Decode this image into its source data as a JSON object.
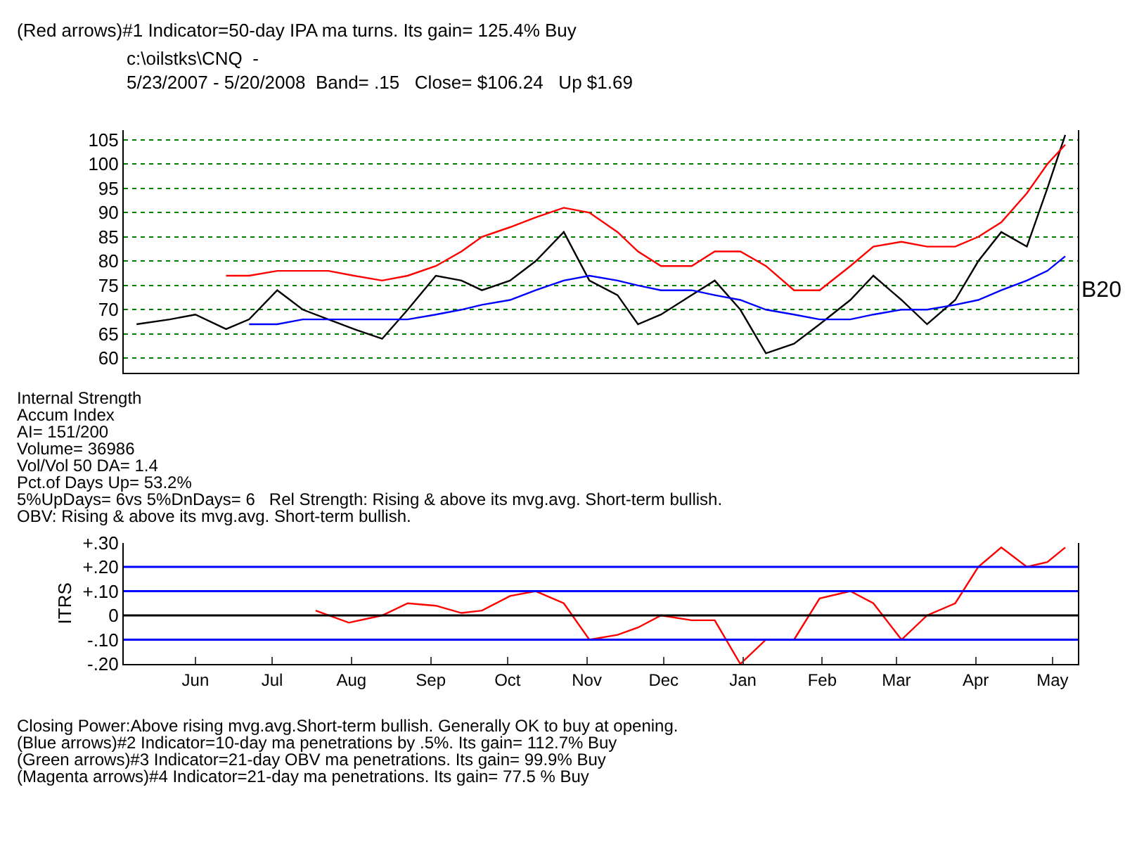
{
  "chart_data": [
    {
      "type": "line",
      "title": "(Red arrows)#1 Indicator=50-day IPA ma turns. Its gain= 125.4% Buy",
      "subtitle": "c:\\oilstks\\CNQ  -\n5/23/2007 - 5/20/2008  Band= .15   Close= $106.24   Up $1.69",
      "x": [
        "2007-05-23",
        "2007-06-05",
        "2007-06-15",
        "2007-06-27",
        "2007-07-06",
        "2007-07-17",
        "2007-07-27",
        "2007-08-06",
        "2007-08-16",
        "2007-08-27",
        "2007-09-06",
        "2007-09-17",
        "2007-09-27",
        "2007-10-05",
        "2007-10-16",
        "2007-10-26",
        "2007-11-06",
        "2007-11-16",
        "2007-11-27",
        "2007-12-05",
        "2007-12-14",
        "2007-12-26",
        "2008-01-04",
        "2008-01-14",
        "2008-01-24",
        "2008-02-04",
        "2008-02-14",
        "2008-02-26",
        "2008-03-06",
        "2008-03-17",
        "2008-03-27",
        "2008-04-07",
        "2008-04-16",
        "2008-04-25",
        "2008-05-05",
        "2008-05-13",
        "2008-05-20"
      ],
      "series": [
        {
          "name": null,
          "color": "#000000",
          "values": [
            67,
            68,
            69,
            66,
            68,
            74,
            70,
            68,
            66,
            64,
            70,
            77,
            76,
            74,
            76,
            80,
            86,
            76,
            73,
            67,
            69,
            73,
            76,
            70,
            61,
            63,
            67,
            72,
            77,
            72,
            67,
            72,
            80,
            86,
            83,
            95,
            106
          ]
        },
        {
          "name": null,
          "color": "#0000ff",
          "values": [
            null,
            null,
            null,
            null,
            67,
            67,
            68,
            68,
            68,
            68,
            68,
            69,
            70,
            71,
            72,
            74,
            76,
            77,
            76,
            75,
            74,
            74,
            73,
            72,
            70,
            69,
            68,
            68,
            69,
            70,
            70,
            71,
            72,
            74,
            76,
            78,
            81
          ]
        },
        {
          "name": null,
          "color": "#ff0000",
          "values": [
            null,
            null,
            null,
            77,
            77,
            78,
            78,
            78,
            77,
            76,
            77,
            79,
            82,
            85,
            87,
            89,
            91,
            90,
            86,
            82,
            79,
            79,
            82,
            82,
            79,
            74,
            74,
            79,
            83,
            84,
            83,
            83,
            85,
            88,
            94,
            100,
            104
          ]
        }
      ],
      "xlim": [
        "2007-05-18",
        "2008-05-25"
      ],
      "ylim": [
        57,
        107
      ],
      "yticks": [
        60,
        65,
        70,
        75,
        80,
        85,
        90,
        95,
        100,
        105
      ],
      "grid": "y",
      "tick_labels": "y",
      "annotations": [
        "B20"
      ]
    },
    {
      "type": "line",
      "ylabel": "ITRS",
      "x": [
        "2007-08-01",
        "2007-08-14",
        "2007-08-27",
        "2007-09-06",
        "2007-09-17",
        "2007-09-27",
        "2007-10-05",
        "2007-10-16",
        "2007-10-26",
        "2007-11-06",
        "2007-11-16",
        "2007-11-27",
        "2007-12-05",
        "2007-12-14",
        "2007-12-26",
        "2008-01-04",
        "2008-01-14",
        "2008-01-24",
        "2008-02-04",
        "2008-02-14",
        "2008-02-26",
        "2008-03-06",
        "2008-03-17",
        "2008-03-27",
        "2008-04-07",
        "2008-04-16",
        "2008-04-25",
        "2008-05-05",
        "2008-05-13",
        "2008-05-20"
      ],
      "series": [
        {
          "name": null,
          "color": "#ff0000",
          "values": [
            0.02,
            -0.03,
            0,
            0.05,
            0.04,
            0.01,
            0.02,
            0.08,
            0.1,
            0.05,
            -0.1,
            -0.08,
            -0.05,
            0,
            -0.02,
            -0.02,
            -0.2,
            -0.1,
            -0.1,
            0.07,
            0.1,
            0.05,
            -0.1,
            0,
            0.05,
            0.2,
            0.28,
            0.2,
            0.22,
            0.28
          ]
        }
      ],
      "xlim": [
        "2007-05-18",
        "2008-05-25"
      ],
      "xticks": [
        {
          "value": "2007-06-15",
          "label": "Jun"
        },
        {
          "value": "2007-07-15",
          "label": "Jul"
        },
        {
          "value": "2007-08-15",
          "label": "Aug"
        },
        {
          "value": "2007-09-15",
          "label": "Sep"
        },
        {
          "value": "2007-10-15",
          "label": "Oct"
        },
        {
          "value": "2007-11-15",
          "label": "Nov"
        },
        {
          "value": "2007-12-15",
          "label": "Dec"
        },
        {
          "value": "2008-01-15",
          "label": "Jan"
        },
        {
          "value": "2008-02-15",
          "label": "Feb"
        },
        {
          "value": "2008-03-15",
          "label": "Mar"
        },
        {
          "value": "2008-04-15",
          "label": "Apr"
        },
        {
          "value": "2008-05-15",
          "label": "May"
        }
      ],
      "ylim": [
        -0.2,
        0.3
      ],
      "yticks": [
        {
          "value": -0.2,
          "label": "-.20"
        },
        {
          "value": -0.1,
          "label": "-.10"
        },
        0,
        {
          "value": 0.1,
          "label": "+.10"
        },
        {
          "value": 0.2,
          "label": "+.20"
        },
        {
          "value": 0.3,
          "label": "+.30"
        }
      ],
      "ref_lines": [
        {
          "axis": "y",
          "value": 0,
          "color": "#000000"
        },
        {
          "axis": "y",
          "value": 0.1,
          "color": "#0000ff"
        },
        {
          "axis": "y",
          "value": -0.1,
          "color": "#0000ff"
        },
        {
          "axis": "y",
          "value": 0.2,
          "color": "#0000ff"
        }
      ],
      "annotations": [
        "Internal Strength",
        "Accum Index",
        "AI= 151/200",
        "Volume= 36986",
        "Vol/Vol 50 DA= 1.4",
        "Pct.of Days Up= 53.2%",
        "5%UpDays= 6vs 5%DnDays= 6   Rel Strength: Rising & above its mvg.avg. Short-term bullish.",
        "OBV: Rising & above its mvg.avg. Short-term bullish.",
        "Closing Power:Above rising mvg.avg.Short-term bullish. Generally OK to buy at opening.",
        "(Blue arrows)#2 Indicator=10-day ma penetrations by .5%. Its gain= 112.7% Buy",
        "(Green arrows)#3 Indicator=21-day OBV ma penetrations. Its gain= 99.9% Buy",
        "(Magenta arrows)#4 Indicator=21-day ma penetrations. Its gain= 77.5 % Buy"
      ]
    }
  ]
}
